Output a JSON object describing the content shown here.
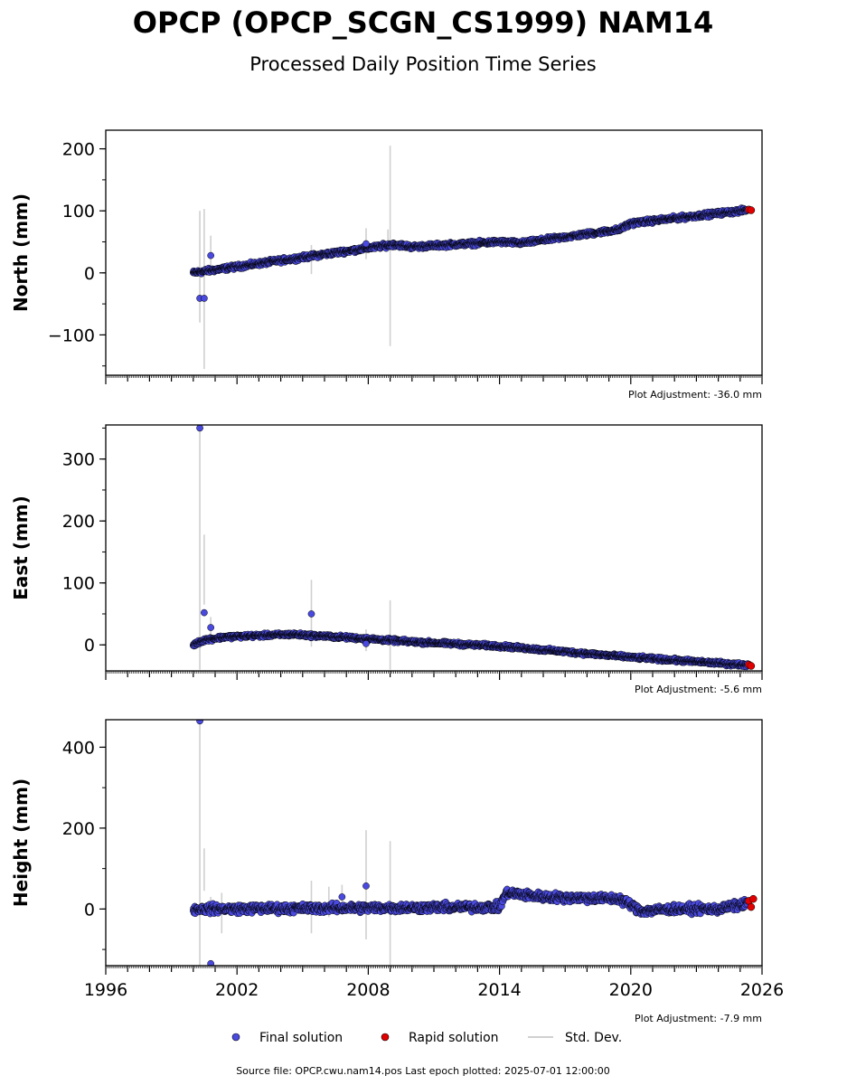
{
  "header": {
    "title": "OPCP (OPCP_SCGN_CS1999) NAM14",
    "subtitle": "Processed Daily Position Time Series"
  },
  "legend": {
    "final": "Final solution",
    "rapid": "Rapid solution",
    "std": "Std. Dev."
  },
  "footer": {
    "source": "Source file: OPCP.cwu.nam14.pos  Last epoch plotted: 2025-07-01 12:00:00"
  },
  "colors": {
    "final": "#4a4ae0",
    "rapid": "#e00000",
    "std": "#d0d0d0",
    "edge": "#000000"
  },
  "chart_data": [
    {
      "type": "scatter",
      "ylabel": "North (mm)",
      "adjustment": "Plot Adjustment: -36.0 mm",
      "xlim": [
        1996,
        2026
      ],
      "ylim": [
        -165,
        230
      ],
      "yticks": [
        -100,
        0,
        100,
        200
      ],
      "yticklabels": [
        "−100",
        "0",
        "100",
        "200"
      ],
      "trend": [
        [
          2000.0,
          0
        ],
        [
          2008.0,
          40
        ],
        [
          2009.2,
          46
        ],
        [
          2010.0,
          42
        ],
        [
          2014.0,
          50
        ],
        [
          2015.0,
          48
        ],
        [
          2019.5,
          70
        ],
        [
          2020.0,
          80
        ],
        [
          2025.5,
          102
        ]
      ],
      "noise": 3,
      "outliers": [
        [
          2000.3,
          -41
        ],
        [
          2000.5,
          -41
        ],
        [
          2000.8,
          28
        ],
        [
          2007.9,
          47
        ]
      ],
      "errorbars": [
        [
          2000.3,
          -80,
          100
        ],
        [
          2000.5,
          -155,
          103
        ],
        [
          2000.8,
          -5,
          60
        ],
        [
          2005.4,
          -2,
          45
        ],
        [
          2007.9,
          22,
          72
        ],
        [
          2008.9,
          45,
          70
        ],
        [
          2009.0,
          -118,
          205
        ]
      ],
      "rapid": [
        [
          2025.4,
          102
        ],
        [
          2025.5,
          101
        ]
      ]
    },
    {
      "type": "scatter",
      "ylabel": "East (mm)",
      "adjustment": "Plot Adjustment: -5.6 mm",
      "xlim": [
        1996,
        2026
      ],
      "ylim": [
        -42,
        355
      ],
      "yticks": [
        0,
        100,
        200,
        300
      ],
      "yticklabels": [
        "0",
        "100",
        "200",
        "300"
      ],
      "trend": [
        [
          2000.0,
          0
        ],
        [
          2000.5,
          8
        ],
        [
          2001.5,
          13
        ],
        [
          2004.5,
          17
        ],
        [
          2007.0,
          12
        ],
        [
          2010.0,
          5
        ],
        [
          2014.0,
          -2
        ],
        [
          2020.0,
          -20
        ],
        [
          2025.5,
          -33
        ]
      ],
      "noise": 2.5,
      "outliers": [
        [
          2000.3,
          350
        ],
        [
          2000.5,
          52
        ],
        [
          2000.8,
          28
        ],
        [
          2005.4,
          50
        ],
        [
          2007.9,
          2
        ]
      ],
      "errorbars": [
        [
          2000.3,
          -40,
          350
        ],
        [
          2000.5,
          65,
          178
        ],
        [
          2000.8,
          10,
          45
        ],
        [
          2005.4,
          -3,
          105
        ],
        [
          2007.9,
          -10,
          25
        ],
        [
          2009.0,
          -40,
          72
        ]
      ],
      "rapid": [
        [
          2025.4,
          -32
        ],
        [
          2025.5,
          -34
        ]
      ]
    },
    {
      "type": "scatter",
      "ylabel": "Height (mm)",
      "adjustment": "Plot Adjustment: -7.9 mm",
      "xlim": [
        1996,
        2026
      ],
      "ylim": [
        -140,
        468
      ],
      "yticks": [
        0,
        200,
        400
      ],
      "yticklabels": [
        "0",
        "200",
        "400"
      ],
      "xticks": [
        1996,
        2002,
        2008,
        2014,
        2020,
        2026
      ],
      "xticklabels": [
        "1996",
        "2002",
        "2008",
        "2014",
        "2020",
        "2026"
      ],
      "trend": [
        [
          2000.0,
          0
        ],
        [
          2014.0,
          5
        ],
        [
          2014.3,
          40
        ],
        [
          2016.0,
          30
        ],
        [
          2019.5,
          25
        ],
        [
          2020.5,
          -5
        ],
        [
          2022.0,
          0
        ],
        [
          2024.0,
          0
        ],
        [
          2025.5,
          15
        ]
      ],
      "noise": 9,
      "outliers": [
        [
          2000.3,
          465
        ],
        [
          2000.8,
          -135
        ],
        [
          2007.9,
          57
        ],
        [
          2006.8,
          30
        ]
      ],
      "errorbars": [
        [
          2000.3,
          -140,
          465
        ],
        [
          2000.5,
          45,
          150
        ],
        [
          2000.8,
          -20,
          30
        ],
        [
          2001.3,
          -60,
          40
        ],
        [
          2005.4,
          -60,
          70
        ],
        [
          2006.2,
          -20,
          55
        ],
        [
          2006.8,
          -15,
          60
        ],
        [
          2007.9,
          -75,
          195
        ],
        [
          2009.0,
          -140,
          168
        ]
      ],
      "rapid": [
        [
          2025.4,
          20
        ],
        [
          2025.5,
          5
        ],
        [
          2025.6,
          25
        ]
      ]
    }
  ]
}
